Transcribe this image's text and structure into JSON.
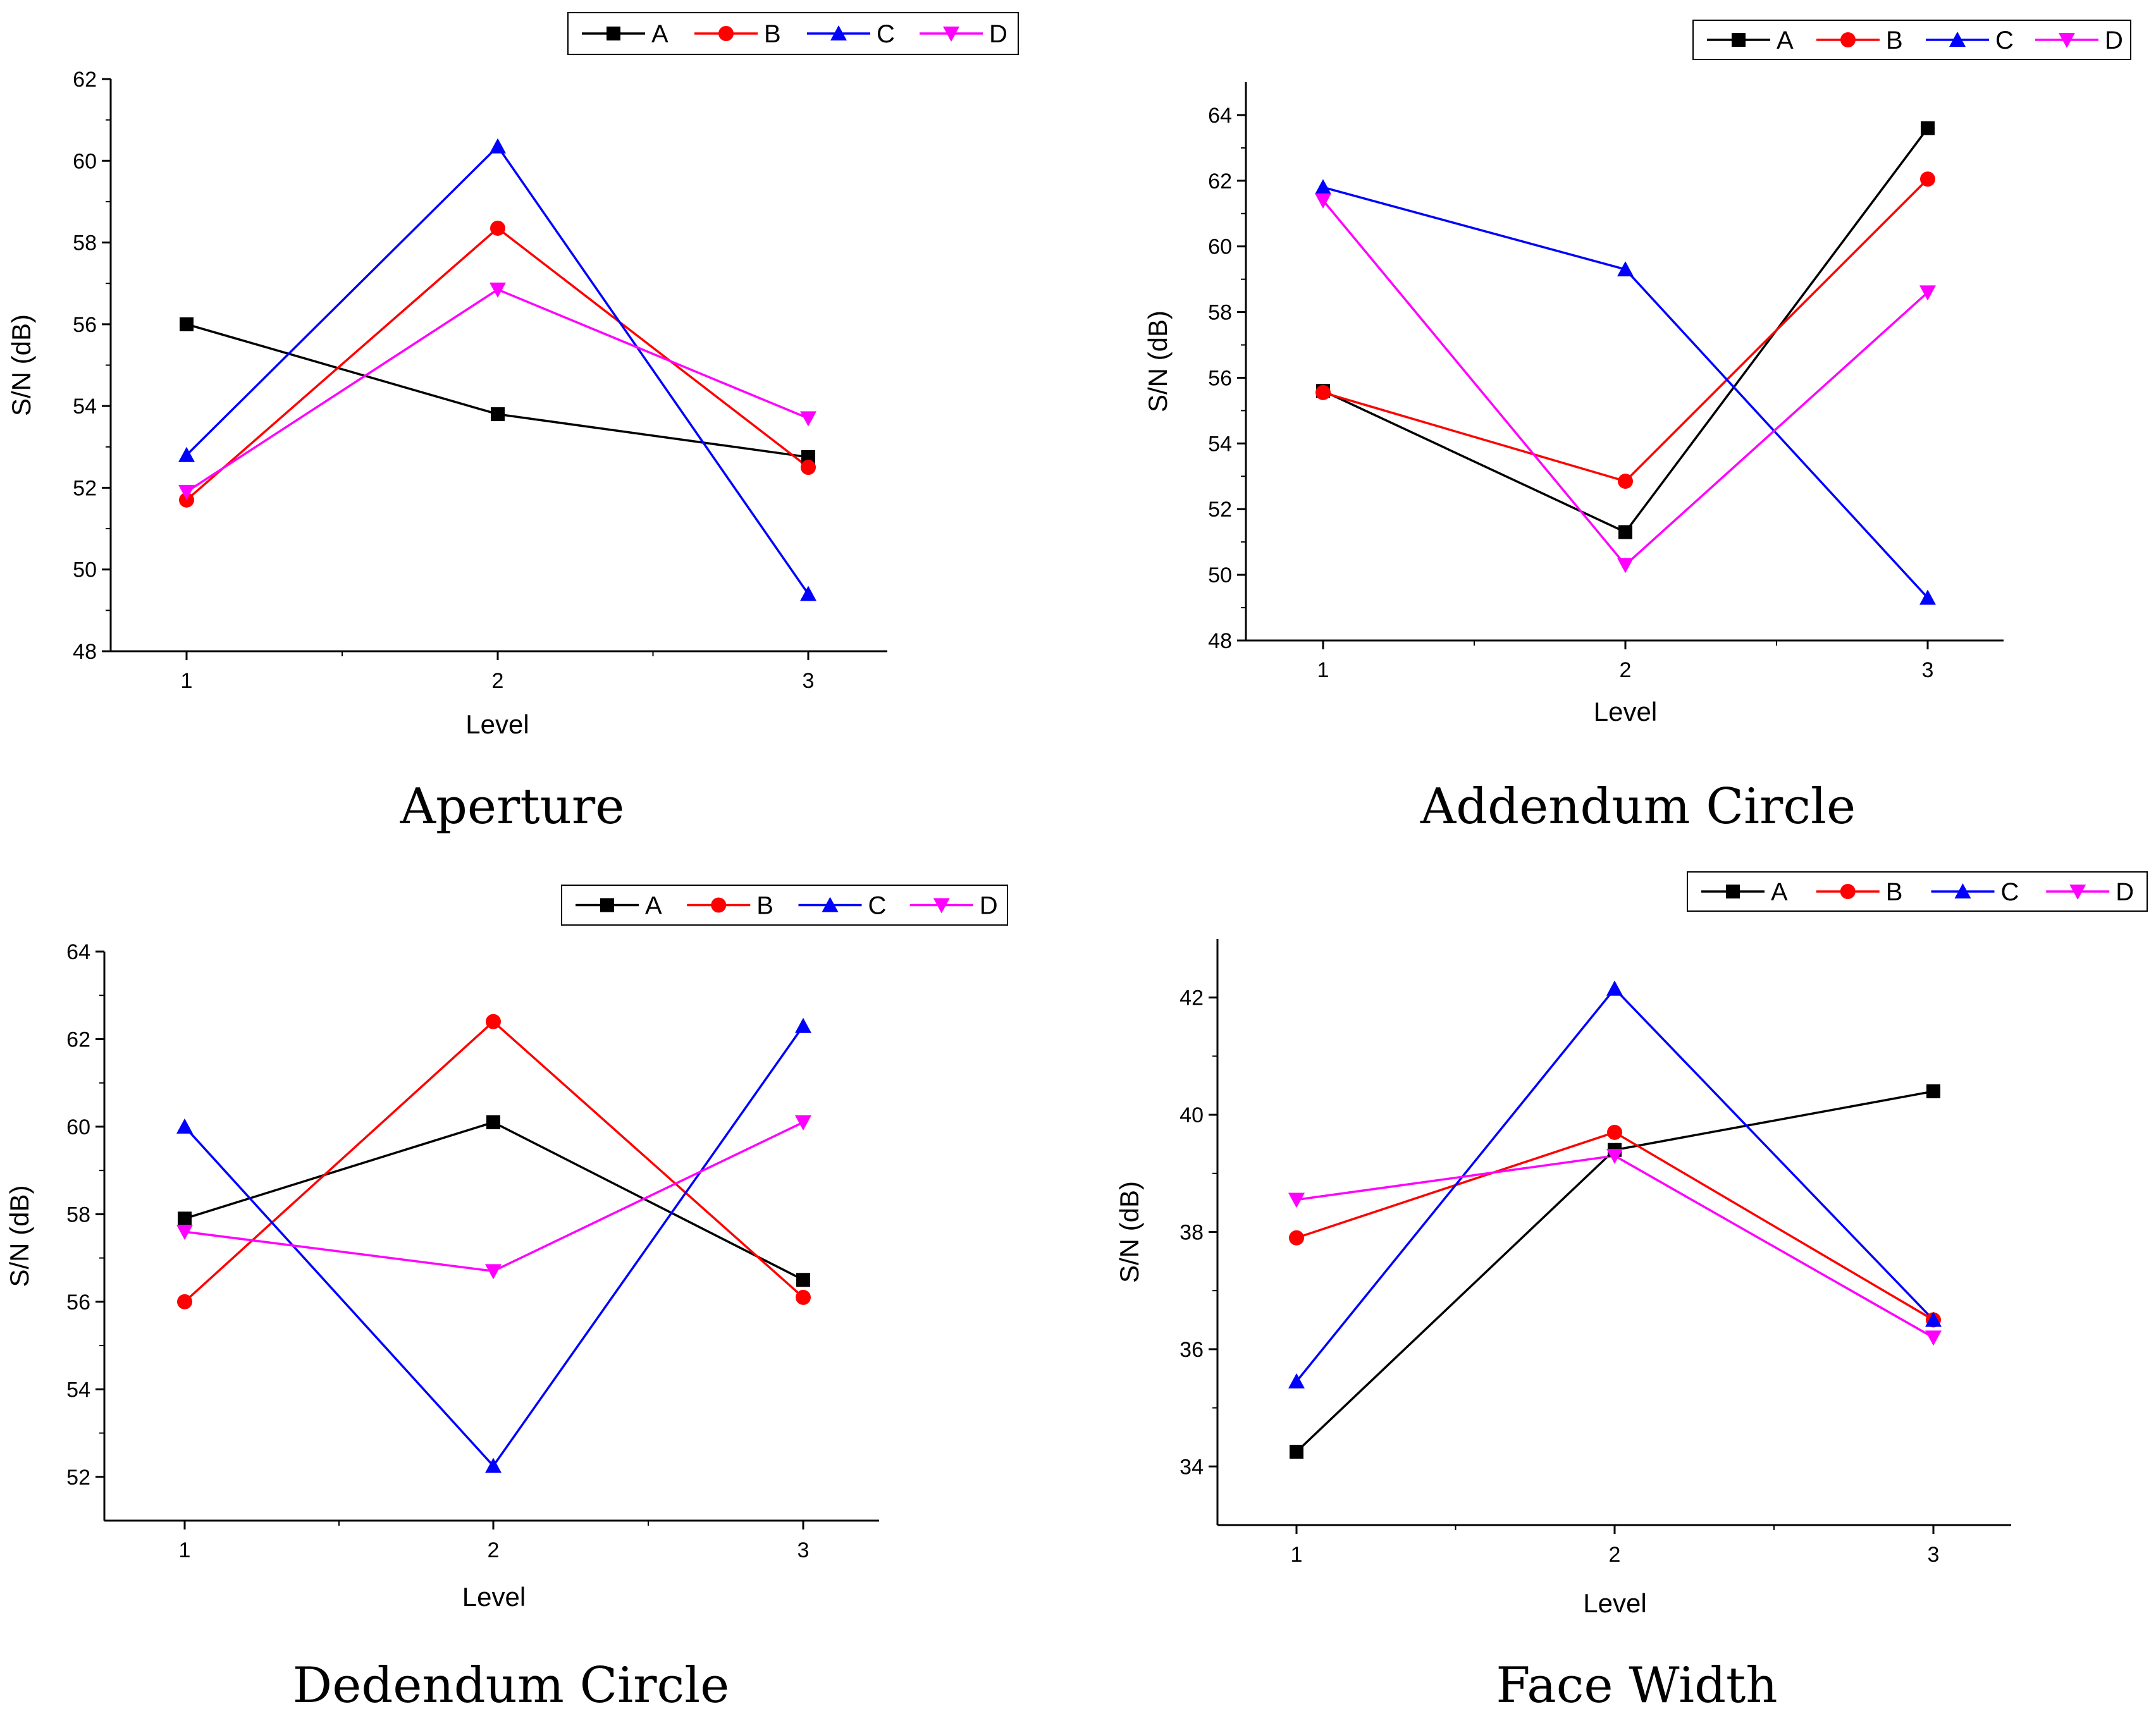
{
  "figure": {
    "layout": "2x2 grid of line charts"
  },
  "chart_data": [
    {
      "type": "line",
      "caption": "Aperture",
      "xlabel": "Level",
      "ylabel": "S/N (dB)",
      "categories": [
        "1",
        "2",
        "3"
      ],
      "ylim": [
        48,
        62
      ],
      "yticks": [
        48,
        50,
        52,
        54,
        56,
        58,
        60,
        62
      ],
      "legend": {
        "position": "top-right",
        "orientation": "horizontal"
      },
      "series": [
        {
          "name": "A",
          "color": "#000000",
          "marker": "square",
          "values": [
            56.0,
            53.8,
            52.75
          ]
        },
        {
          "name": "B",
          "color": "#ff0000",
          "marker": "circle",
          "values": [
            51.7,
            58.35,
            52.5
          ]
        },
        {
          "name": "C",
          "color": "#0000ff",
          "marker": "triangle-up",
          "values": [
            52.8,
            60.35,
            49.4
          ]
        },
        {
          "name": "D",
          "color": "#ff00ff",
          "marker": "triangle-down",
          "values": [
            51.9,
            56.85,
            53.7
          ]
        }
      ]
    },
    {
      "type": "line",
      "caption": "Addendum Circle",
      "xlabel": "Level",
      "ylabel": "S/N (dB)",
      "categories": [
        "1",
        "2",
        "3"
      ],
      "ylim": [
        48,
        65
      ],
      "yticks": [
        48,
        50,
        52,
        54,
        56,
        58,
        60,
        62,
        64
      ],
      "legend": {
        "position": "top-right",
        "orientation": "horizontal"
      },
      "series": [
        {
          "name": "A",
          "color": "#000000",
          "marker": "square",
          "values": [
            55.6,
            51.3,
            63.6
          ]
        },
        {
          "name": "B",
          "color": "#ff0000",
          "marker": "circle",
          "values": [
            55.55,
            52.85,
            62.05
          ]
        },
        {
          "name": "C",
          "color": "#0000ff",
          "marker": "triangle-up",
          "values": [
            61.8,
            59.3,
            49.3
          ]
        },
        {
          "name": "D",
          "color": "#ff00ff",
          "marker": "triangle-down",
          "values": [
            61.4,
            50.3,
            58.6
          ]
        }
      ]
    },
    {
      "type": "line",
      "caption": "Dedendum Circle",
      "xlabel": "Level",
      "ylabel": "S/N (dB)",
      "categories": [
        "1",
        "2",
        "3"
      ],
      "ylim": [
        51,
        64
      ],
      "yticks": [
        52,
        54,
        56,
        58,
        60,
        62,
        64
      ],
      "legend": {
        "position": "top-right",
        "orientation": "horizontal"
      },
      "series": [
        {
          "name": "A",
          "color": "#000000",
          "marker": "square",
          "values": [
            57.9,
            60.1,
            56.5
          ]
        },
        {
          "name": "B",
          "color": "#ff0000",
          "marker": "circle",
          "values": [
            56.0,
            62.4,
            56.1
          ]
        },
        {
          "name": "C",
          "color": "#0000ff",
          "marker": "triangle-up",
          "values": [
            60.0,
            52.25,
            62.3
          ]
        },
        {
          "name": "D",
          "color": "#ff00ff",
          "marker": "triangle-down",
          "values": [
            57.6,
            56.7,
            60.1
          ]
        }
      ]
    },
    {
      "type": "line",
      "caption": "Face Width",
      "xlabel": "Level",
      "ylabel": "S/N (dB)",
      "categories": [
        "1",
        "2",
        "3"
      ],
      "ylim": [
        33,
        43
      ],
      "yticks": [
        34,
        36,
        38,
        40,
        42
      ],
      "legend": {
        "position": "top-right",
        "orientation": "horizontal"
      },
      "series": [
        {
          "name": "A",
          "color": "#000000",
          "marker": "square",
          "values": [
            34.25,
            39.4,
            40.4
          ]
        },
        {
          "name": "B",
          "color": "#ff0000",
          "marker": "circle",
          "values": [
            37.9,
            39.7,
            36.5
          ]
        },
        {
          "name": "C",
          "color": "#0000ff",
          "marker": "triangle-up",
          "values": [
            35.45,
            42.15,
            36.5
          ]
        },
        {
          "name": "D",
          "color": "#ff00ff",
          "marker": "triangle-down",
          "values": [
            38.55,
            39.3,
            36.2
          ]
        }
      ]
    }
  ]
}
